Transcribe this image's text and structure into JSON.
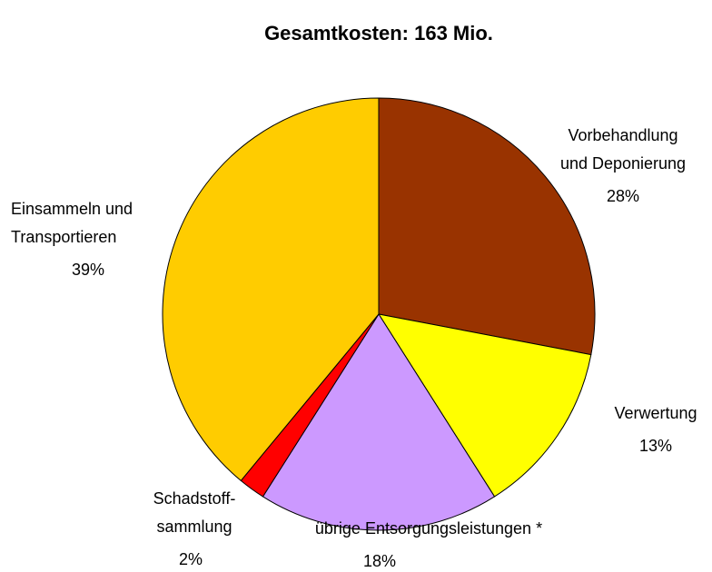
{
  "chart_data": {
    "type": "pie",
    "title": "Gesamtkosten: 163 Mio.",
    "categories": [
      [
        "Vorbehandlung",
        "und Deponierung"
      ],
      [
        "Verwertung"
      ],
      [
        "übrige Entsorgungsleistungen *"
      ],
      [
        "Schadstoff-",
        "sammlung"
      ],
      [
        "Einsammeln und",
        "Transportieren"
      ]
    ],
    "values": [
      28,
      13,
      18,
      2,
      39
    ],
    "value_labels": [
      "28%",
      "13%",
      "18%",
      "2%",
      "39%"
    ],
    "colors": [
      "#993300",
      "#ffff00",
      "#cc99ff",
      "#ff0000",
      "#ffcc00"
    ]
  }
}
